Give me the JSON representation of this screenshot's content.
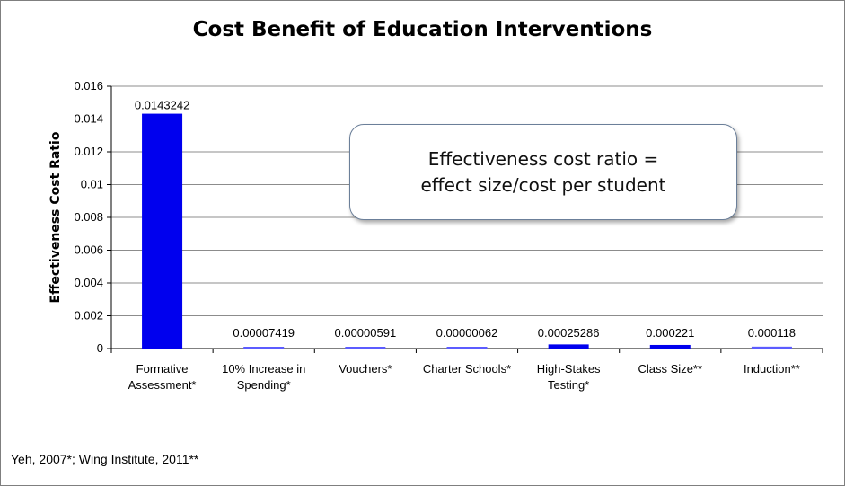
{
  "chart_data": {
    "type": "bar",
    "title": "Cost Benefit of Education Interventions",
    "xlabel": "",
    "ylabel": "Effectiveness Cost Ratio",
    "ylim": [
      0,
      0.016
    ],
    "yticks": [
      "0",
      "0.002",
      "0.004",
      "0.006",
      "0.008",
      "0.01",
      "0.012",
      "0.014",
      "0.016"
    ],
    "grid": true,
    "categories": [
      [
        "Formative",
        "Assessment*"
      ],
      [
        "10% Increase in",
        "Spending*"
      ],
      [
        "Vouchers*"
      ],
      [
        "Charter Schools*"
      ],
      [
        "High-Stakes",
        "Testing*"
      ],
      [
        "Class Size**"
      ],
      [
        "Induction**"
      ]
    ],
    "values": [
      0.0143242,
      7.419e-05,
      5.91e-06,
      6.2e-07,
      0.00025286,
      0.000221,
      0.000118
    ],
    "data_labels": [
      "0.0143242",
      "0.00007419",
      "0.00000591",
      "0.00000062",
      "0.00025286",
      "0.000221",
      "0.000118"
    ],
    "bar_color": "#0000ee",
    "bar_color_small": "#5c5cff"
  },
  "callout": {
    "line1": "Effectiveness cost ratio =",
    "line2": "effect size/cost per student"
  },
  "footnote": "Yeh, 2007*;  Wing Institute, 2011**"
}
